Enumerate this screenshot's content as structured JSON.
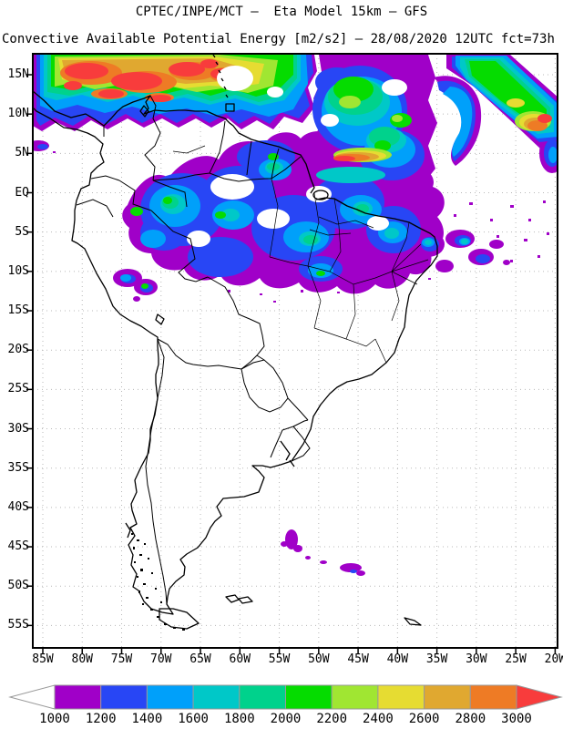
{
  "header": {
    "line1": "CPTEC/INPE/MCT –  Eta Model 15km – GFS",
    "line2": "Convective Available Potential Energy [m2/s2] – 28/08/2020 12UTC fct=73h"
  },
  "map": {
    "lat_ticks": [
      "15N",
      "10N",
      "5N",
      "EQ",
      "5S",
      "10S",
      "15S",
      "20S",
      "25S",
      "30S",
      "35S",
      "40S",
      "45S",
      "50S",
      "55S"
    ],
    "lon_ticks": [
      "85W",
      "80W",
      "75W",
      "70W",
      "65W",
      "60W",
      "55W",
      "50W",
      "45W",
      "40W",
      "35W",
      "30W",
      "25W",
      "20W"
    ],
    "grid_color": "#b8b8b8",
    "frame_color": "#000000"
  },
  "colorbar": {
    "labels": [
      "1000",
      "1200",
      "1400",
      "1600",
      "1800",
      "2000",
      "2200",
      "2400",
      "2600",
      "2800",
      "3000"
    ],
    "cell_colors": [
      "#A000C8",
      "#2846F5",
      "#00A0FA",
      "#00C8C8",
      "#00D28C",
      "#05DC00",
      "#A0E632",
      "#E6DC32",
      "#E0A830",
      "#EE7B25"
    ],
    "under_arrow_color": "#FFFFFF",
    "over_arrow_color": "#F83C3C",
    "outline_color": "#999999"
  },
  "chart_data": {
    "type": "heatmap",
    "title": "CPTEC/INPE/MCT –  Eta Model 15km – GFS",
    "subtitle": "Convective Available Potential Energy [m2/s2] – 28/08/2020 12UTC fct=73h",
    "variable": "Convective Available Potential Energy",
    "units": "m2/s2",
    "model": "Eta Model 15km – GFS",
    "source": "CPTEC/INPE/MCT",
    "valid_date": "28/08/2020 12UTC",
    "forecast": "fct=73h",
    "lon_range": [
      "85W",
      "20W"
    ],
    "lat_range": [
      "55S",
      "15N"
    ],
    "grid": true,
    "legend_position": "bottom",
    "scale_levels": [
      1000,
      1200,
      1400,
      1600,
      1800,
      2000,
      2200,
      2400,
      2600,
      2800,
      3000
    ],
    "scale_colors": [
      "#A000C8",
      "#2846F5",
      "#00A0FA",
      "#00C8C8",
      "#00D28C",
      "#05DC00",
      "#A0E632",
      "#E6DC32",
      "#E0A830",
      "#EE7B25"
    ],
    "under_level": "below 1000 unshaded (white arrow)",
    "over_level": "above 3000 red arrow",
    "features": [
      {
        "area": "Caribbean and seas north of Venezuela/Colombia (85W–55W, 10N–17N)",
        "cape": "2200–3000+, widespread red maxima"
      },
      {
        "area": "Tropical Atlantic ITCZ bands (55W–20W, EQ–15N)",
        "cape": "1000–3000 banded, orange/red cores near 52W 7N and 22W 12N"
      },
      {
        "area": "Northwest/central Amazon (75W–50W, 5N–10S)",
        "cape": "1000–2200 patchy blue/cyan with green spots"
      },
      {
        "area": "Peru near 76W 10S",
        "cape": "small 1000–1800 cluster"
      },
      {
        "area": "South Atlantic near 55W–47W, 42S–45S",
        "cape": "isolated ~1000 specks"
      },
      {
        "area": "Continent south of ~15S",
        "cape": "below 1000 (unshaded)"
      }
    ]
  }
}
